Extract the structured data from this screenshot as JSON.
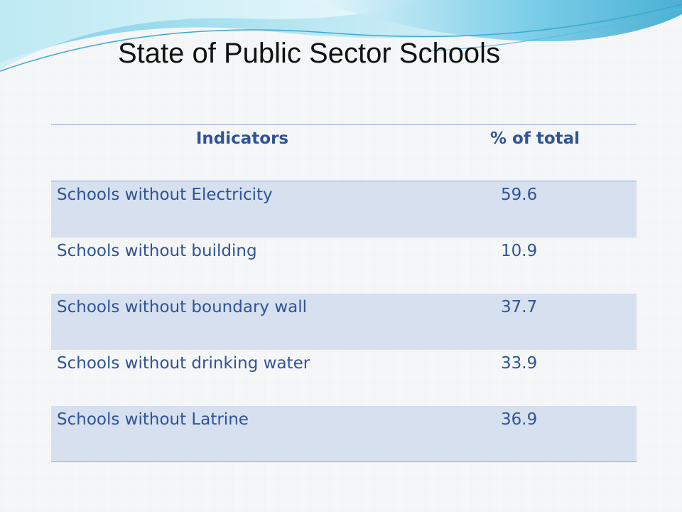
{
  "slide": {
    "title": "State of Public Sector Schools"
  },
  "table": {
    "headers": [
      "Indicators",
      "% of total"
    ],
    "rows": [
      {
        "indicator": "Schools without Electricity",
        "value": "59.6"
      },
      {
        "indicator": "Schools without building",
        "value": "10.9"
      },
      {
        "indicator": "Schools without boundary wall",
        "value": "37.7"
      },
      {
        "indicator": "Schools without drinking water",
        "value": "33.9"
      },
      {
        "indicator": "Schools without Latrine",
        "value": "36.9"
      }
    ]
  },
  "colors": {
    "header_text": "#2f5496",
    "cell_text": "#2f5496",
    "band_fill": "#d6e0ef",
    "rule": "#8eaadb",
    "wave_light": "#bfe9f3",
    "wave_mid": "#7fd0ea",
    "wave_dark": "#3aa9cf"
  }
}
